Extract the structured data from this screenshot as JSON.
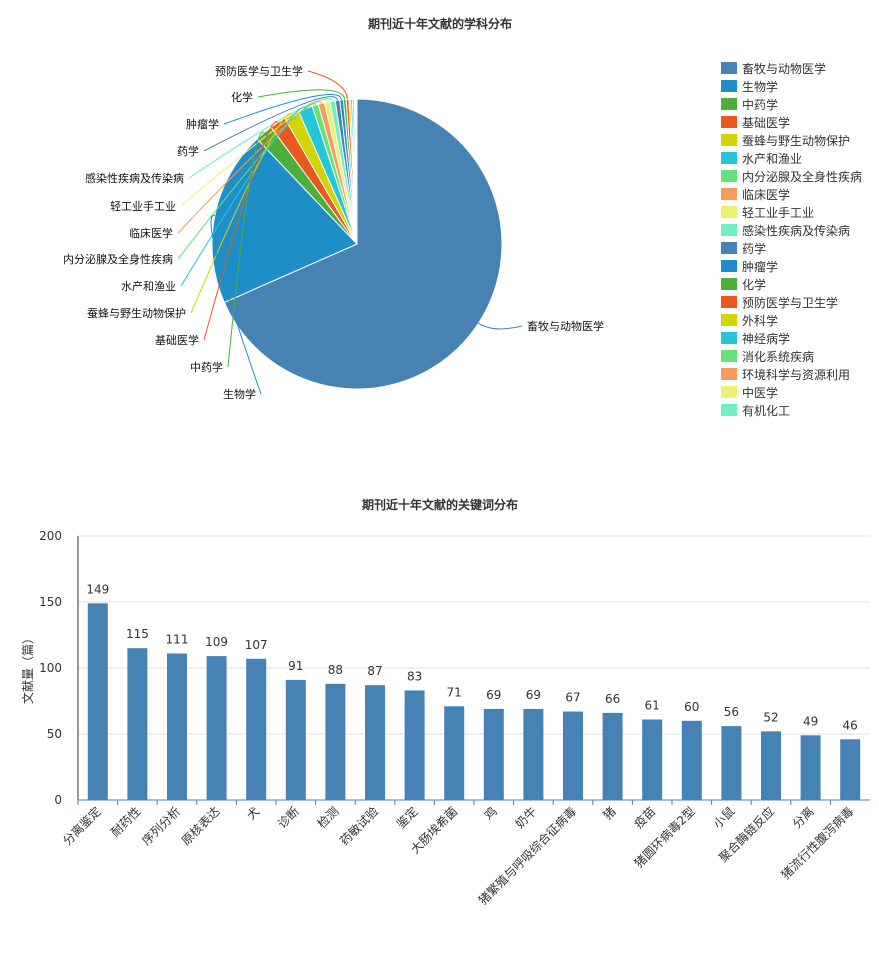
{
  "chart_data": [
    {
      "type": "pie",
      "title": "期刊近十年文献的学科分布",
      "series": [
        {
          "label": "畜牧与动物医学",
          "value": 68.4,
          "color": "#4682b4"
        },
        {
          "label": "生物学",
          "value": 19.5,
          "color": "#1e8ec8"
        },
        {
          "label": "中药学",
          "value": 2.0,
          "color": "#4caf3a"
        },
        {
          "label": "基础医学",
          "value": 1.8,
          "color": "#e8581f"
        },
        {
          "label": "蚕蜂与野生动物保护",
          "value": 1.7,
          "color": "#d4d400"
        },
        {
          "label": "水产和渔业",
          "value": 1.6,
          "color": "#26c6da"
        },
        {
          "label": "内分泌腺及全身性疾病",
          "value": 0.7,
          "color": "#66e07a"
        },
        {
          "label": "临床医学",
          "value": 0.7,
          "color": "#f59c5a"
        },
        {
          "label": "轻工业手工业",
          "value": 0.6,
          "color": "#f0f070"
        },
        {
          "label": "感染性疾病及传染病",
          "value": 0.6,
          "color": "#6ef0c0"
        },
        {
          "label": "药学",
          "value": 0.5,
          "color": "#4682b4"
        },
        {
          "label": "肿瘤学",
          "value": 0.4,
          "color": "#1e8ec8"
        },
        {
          "label": "化学",
          "value": 0.3,
          "color": "#4caf3a"
        },
        {
          "label": "预防医学与卫生学",
          "value": 0.3,
          "color": "#e8581f"
        },
        {
          "label": "外科学",
          "value": 0.2,
          "color": "#d4d400"
        },
        {
          "label": "神经病学",
          "value": 0.2,
          "color": "#26c6da"
        },
        {
          "label": "消化系统疾病",
          "value": 0.2,
          "color": "#66e07a"
        },
        {
          "label": "环境科学与资源利用",
          "value": 0.1,
          "color": "#f59c5a"
        },
        {
          "label": "中医学",
          "value": 0.1,
          "color": "#f0f070"
        },
        {
          "label": "有机化工",
          "value": 0.1,
          "color": "#6ef0c0"
        }
      ],
      "callout_labels": [
        "畜牧与动物医学",
        "生物学",
        "中药学",
        "基础医学",
        "蚕蜂与野生动物保护",
        "水产和渔业",
        "内分泌腺及全身性疾病",
        "临床医学",
        "轻工业手工业",
        "感染性疾病及传染病",
        "药学",
        "肿瘤学",
        "化学",
        "预防医学与卫生学"
      ],
      "legend_placement": "right"
    },
    {
      "type": "bar",
      "title": "期刊近十年文献的关键词分布",
      "ylabel": "文献量（篇）",
      "ylim": [
        0,
        200
      ],
      "yticks": [
        0,
        50,
        100,
        150,
        200
      ],
      "grid": true,
      "color": "#4682b4",
      "categories": [
        "分离鉴定",
        "耐药性",
        "序列分析",
        "原核表达",
        "犬",
        "诊断",
        "检测",
        "药敏试验",
        "鉴定",
        "大肠埃希菌",
        "鸡",
        "奶牛",
        "猪繁殖与呼吸综合征病毒",
        "猪",
        "疫苗",
        "猪圆环病毒2型",
        "小鼠",
        "聚合酶链反应",
        "分离",
        "猪流行性腹泻病毒"
      ],
      "values": [
        149,
        115,
        111,
        109,
        107,
        91,
        88,
        87,
        83,
        71,
        69,
        69,
        67,
        66,
        61,
        60,
        56,
        52,
        49,
        46
      ]
    }
  ]
}
